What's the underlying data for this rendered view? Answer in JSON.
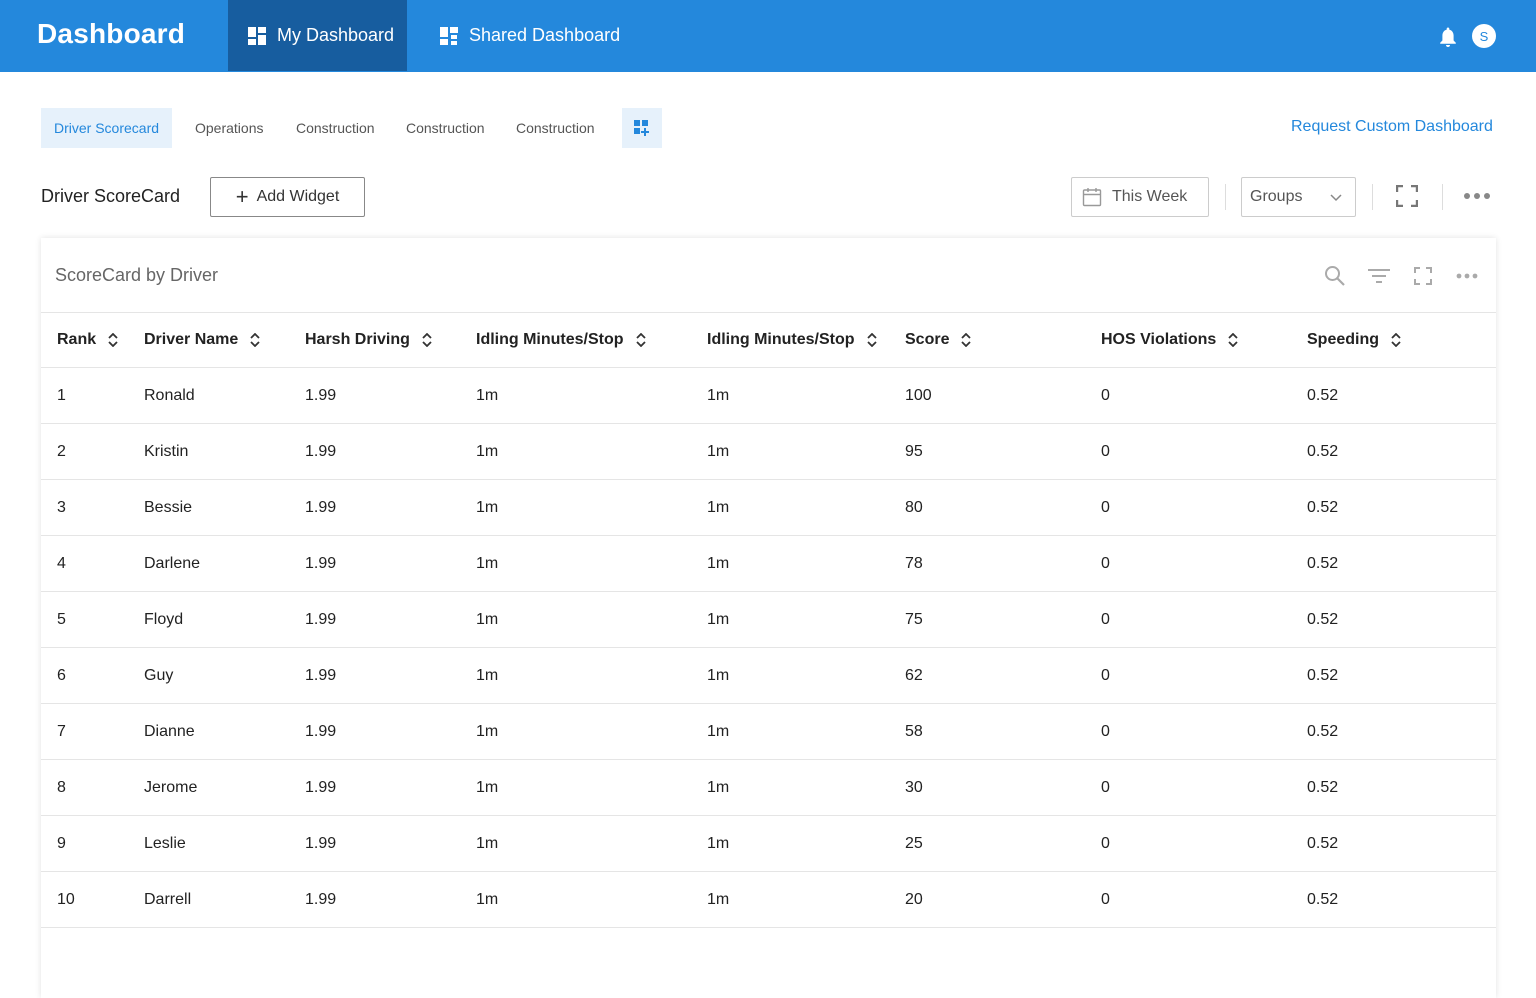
{
  "app": {
    "title": "Dashboard"
  },
  "nav": {
    "tabs": [
      {
        "label": "My Dashboard",
        "active": true
      },
      {
        "label": "Shared Dashboard",
        "active": false
      }
    ]
  },
  "user": {
    "avatar_initial": "S"
  },
  "subtabs": [
    "Driver Scorecard",
    "Operations",
    "Construction",
    "Construction",
    "Construction"
  ],
  "request_link": "Request Custom Dashboard",
  "toolbar": {
    "title": "Driver ScoreCard",
    "add_widget": "Add Widget",
    "date_range": "This Week",
    "groups": "Groups"
  },
  "card": {
    "title": "ScoreCard by Driver"
  },
  "table": {
    "columns": [
      "Rank",
      "Driver Name",
      "Harsh Driving",
      "Idling Minutes/Stop",
      "Idling Minutes/Stop",
      "Score",
      "HOS Violations",
      "Speeding"
    ],
    "rows": [
      [
        "1",
        "Ronald",
        "1.99",
        "1m",
        "1m",
        "100",
        "0",
        "0.52"
      ],
      [
        "2",
        "Kristin",
        "1.99",
        "1m",
        "1m",
        "95",
        "0",
        "0.52"
      ],
      [
        "3",
        "Bessie",
        "1.99",
        "1m",
        "1m",
        "80",
        "0",
        "0.52"
      ],
      [
        "4",
        "Darlene",
        "1.99",
        "1m",
        "1m",
        "78",
        "0",
        "0.52"
      ],
      [
        "5",
        "Floyd",
        "1.99",
        "1m",
        "1m",
        "75",
        "0",
        "0.52"
      ],
      [
        "6",
        "Guy",
        "1.99",
        "1m",
        "1m",
        "62",
        "0",
        "0.52"
      ],
      [
        "7",
        "Dianne",
        "1.99",
        "1m",
        "1m",
        "58",
        "0",
        "0.52"
      ],
      [
        "8",
        "Jerome",
        "1.99",
        "1m",
        "1m",
        "30",
        "0",
        "0.52"
      ],
      [
        "9",
        "Leslie",
        "1.99",
        "1m",
        "1m",
        "25",
        "0",
        "0.52"
      ],
      [
        "10",
        "Darrell",
        "1.99",
        "1m",
        "1m",
        "20",
        "0",
        "0.52"
      ]
    ]
  },
  "colors": {
    "primary": "#2488dc",
    "primary_dark": "#175d9f",
    "tab_active_bg": "#e6f1fb"
  }
}
